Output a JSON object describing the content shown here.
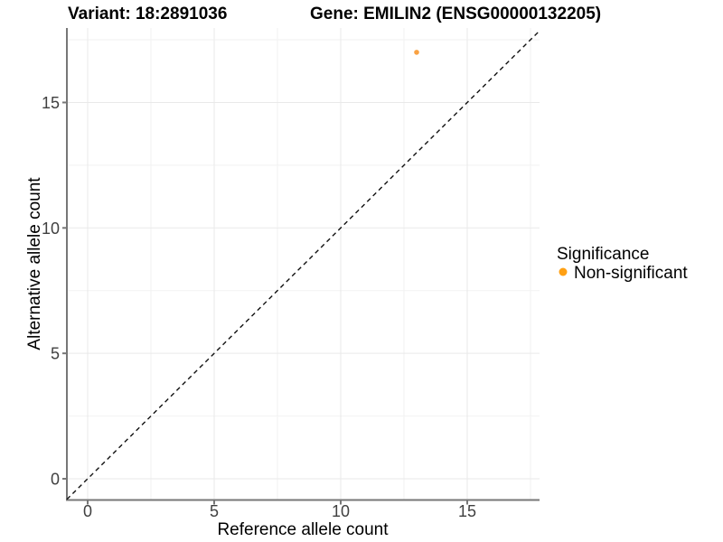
{
  "chart_data": {
    "type": "scatter",
    "title_left": "Variant: 18:2891036",
    "title_right": "Gene: EMILIN2 (ENSG00000132205)",
    "xlabel": "Reference allele count",
    "ylabel": "Alternative allele count",
    "xlim": [
      0,
      17
    ],
    "ylim": [
      0,
      17
    ],
    "x_ticks": [
      0,
      5,
      10,
      15
    ],
    "y_ticks": [
      0,
      5,
      10,
      15
    ],
    "x_minor_gridlines": [
      2.5,
      7.5,
      12.5,
      17.5
    ],
    "y_minor_gridlines": [
      2.5,
      7.5,
      12.5,
      17.5
    ],
    "grid": true,
    "points": [
      {
        "x": 13,
        "y": 17,
        "series": "Non-significant"
      }
    ],
    "abline": {
      "slope": 1,
      "intercept": 0,
      "style": "dashed"
    },
    "legend": {
      "title": "Significance",
      "position": "right",
      "entries": [
        {
          "label": "Non-significant",
          "color": "#FFA013"
        }
      ]
    },
    "colors": {
      "point": "#F9A243",
      "abline": "#111111",
      "grid_major": "#E9E9E9",
      "grid_minor": "#F2F2F2",
      "axis_line": "#777777",
      "tick_mark": "#777777"
    }
  }
}
